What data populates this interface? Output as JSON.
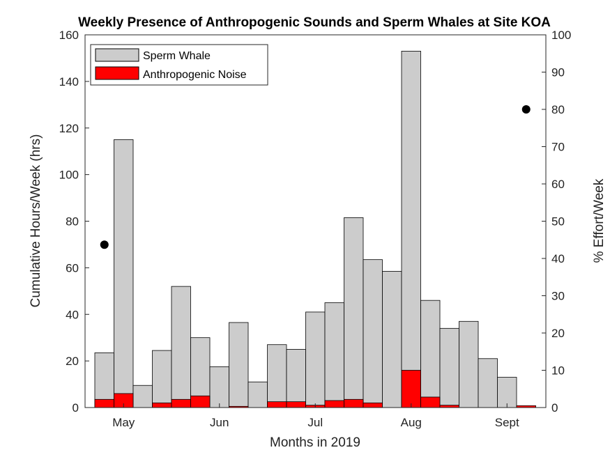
{
  "chart_data": {
    "type": "bar",
    "title": "Weekly Presence of Anthropogenic Sounds and Sperm Whales at Site KOA",
    "xlabel": "Months in 2019",
    "ylabel": "Cumulative Hours/Week (hrs)",
    "y2label": "% Effort/Week",
    "ylim": [
      0,
      160
    ],
    "y2lim": [
      0,
      100
    ],
    "yticks": [
      0,
      20,
      40,
      60,
      80,
      100,
      120,
      140,
      160
    ],
    "y2ticks": [
      0,
      10,
      20,
      30,
      40,
      50,
      60,
      70,
      80,
      90,
      100
    ],
    "month_ticks": [
      {
        "label": "May",
        "week": 1.5
      },
      {
        "label": "Jun",
        "week": 6.5
      },
      {
        "label": "Jul",
        "week": 11.5
      },
      {
        "label": "Aug",
        "week": 16.5
      },
      {
        "label": "Sept",
        "week": 21.5
      }
    ],
    "weeks": 23,
    "stacking": "overlay",
    "series": [
      {
        "name": "Sperm Whale",
        "color": "#cccccc",
        "values": [
          23.5,
          115,
          9.5,
          24.5,
          52,
          30,
          17.5,
          36.5,
          11,
          27,
          25,
          41,
          45,
          81.5,
          63.5,
          58.5,
          153,
          46,
          34,
          37,
          21,
          13,
          0
        ]
      },
      {
        "name": "Anthropogenic Noise",
        "color": "#ff0000",
        "values": [
          3.5,
          6,
          0,
          2,
          3.5,
          5,
          0,
          0.5,
          0,
          2.5,
          2.5,
          1,
          3,
          3.5,
          2,
          0,
          16,
          4.5,
          1,
          0,
          0,
          0,
          0.8
        ]
      }
    ],
    "effort_points": [
      {
        "week": 0.5,
        "percent": 43.7
      },
      {
        "week": 22.5,
        "percent": 80
      }
    ],
    "legend_position": "top-left",
    "grid": false
  }
}
